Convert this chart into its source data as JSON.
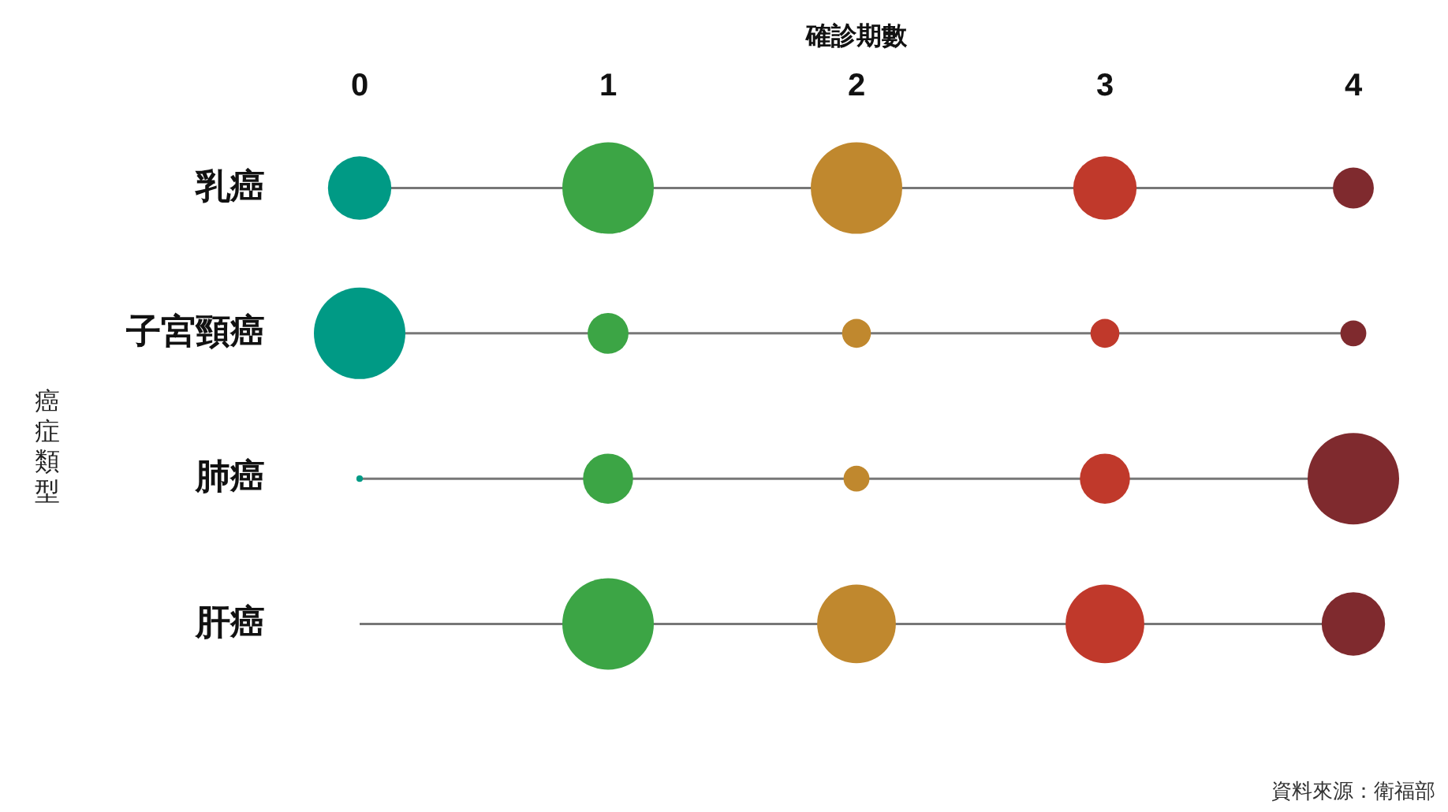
{
  "chart_data": {
    "type": "bubble",
    "orientation": "horizontal",
    "xlabel": "確診期數",
    "ylabel": "癌症類型",
    "categories": [
      "乳癌",
      "子宮頸癌",
      "肺癌",
      "肝癌"
    ],
    "xlim": [
      0,
      4
    ],
    "xticks": [
      0,
      1,
      2,
      3,
      4
    ],
    "series": [
      {
        "color": "#009a85",
        "values": [
          0,
          0,
          0,
          null
        ],
        "sizes": [
          0.48,
          1,
          0.005,
          null
        ]
      },
      {
        "color": "#3ca545",
        "values": [
          1,
          1,
          1,
          1
        ],
        "sizes": [
          1,
          0.2,
          0.3,
          1
        ]
      },
      {
        "color": "#c0882e",
        "values": [
          2,
          2,
          2,
          2
        ],
        "sizes": [
          1,
          0.1,
          0.08,
          0.74
        ]
      },
      {
        "color": "#c0392b",
        "values": [
          3,
          3,
          3,
          3
        ],
        "sizes": [
          0.48,
          0.1,
          0.3,
          0.74
        ]
      },
      {
        "color": "#7f2a2e",
        "values": [
          4,
          4,
          4,
          4
        ],
        "sizes": [
          0.2,
          0.08,
          1,
          0.48
        ]
      }
    ],
    "ref_lines": [
      {
        "axis": "y",
        "value": "乳癌",
        "color": "#777777"
      },
      {
        "axis": "y",
        "value": "子宮頸癌",
        "color": "#777777"
      },
      {
        "axis": "y",
        "value": "肺癌",
        "color": "#777777"
      },
      {
        "axis": "y",
        "value": "肝癌",
        "color": "#777777"
      }
    ],
    "annotations": [
      "資料來源：衛福部"
    ]
  }
}
